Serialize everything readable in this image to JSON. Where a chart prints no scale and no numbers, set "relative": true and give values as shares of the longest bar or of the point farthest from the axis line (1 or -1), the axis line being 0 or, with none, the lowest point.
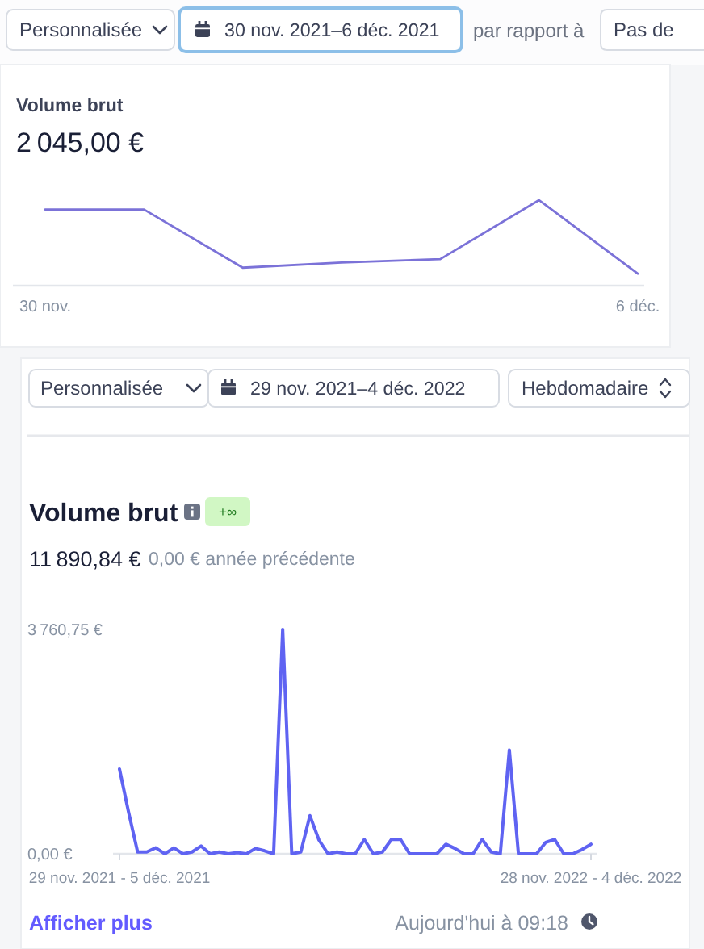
{
  "chart_data": [
    {
      "type": "line",
      "title": "Volume brut",
      "subtitle": "2 045,00 €",
      "annotations": [
        "Personnalisée",
        "30 nov. 2021–6 déc. 2021",
        "par rapport à",
        "Pas de"
      ],
      "categories": [
        "30 nov.",
        null,
        null,
        null,
        null,
        null,
        "6 déc."
      ],
      "relative": true,
      "series": [
        {
          "color": "#7b72d8",
          "values": [
            0.89,
            0.89,
            0.21,
            0.27,
            0.31,
            1,
            0.14
          ]
        }
      ]
    },
    {
      "type": "line",
      "title": "Volume brut",
      "subtitle": "11 890,84 €",
      "annotations": [
        "Personnalisée",
        "29 nov. 2021–4 déc. 2022",
        "Hebdomadaire",
        "+∞",
        "0,00 € année précédente",
        "Afficher plus",
        "Aujourd'hui à 09:18"
      ],
      "categories": [
        "29 nov. 2021 - 5 déc. 2021",
        null,
        null,
        null,
        null,
        null,
        null,
        null,
        null,
        null,
        null,
        null,
        null,
        null,
        null,
        null,
        null,
        null,
        null,
        null,
        null,
        null,
        null,
        null,
        null,
        null,
        null,
        null,
        null,
        null,
        null,
        null,
        null,
        null,
        null,
        null,
        null,
        null,
        null,
        null,
        null,
        null,
        null,
        null,
        null,
        null,
        null,
        null,
        null,
        null,
        null,
        null,
        "28 nov. 2022 - 4 déc. 2022"
      ],
      "ylim": [
        0,
        3760.75
      ],
      "yticks": [
        {
          "value": 0,
          "label": "0,00 €"
        },
        {
          "value": 3760.75,
          "label": "3 760,75 €"
        }
      ],
      "series": [
        {
          "color": "#5f63f2",
          "values": [
            1420,
            700,
            30,
            30,
            100,
            0,
            100,
            0,
            30,
            130,
            0,
            30,
            0,
            20,
            0,
            90,
            50,
            0,
            3760.75,
            0,
            30,
            640,
            230,
            0,
            30,
            0,
            0,
            240,
            0,
            30,
            240,
            240,
            0,
            0,
            0,
            0,
            160,
            90,
            0,
            0,
            240,
            30,
            0,
            1740,
            0,
            0,
            0,
            190,
            240,
            0,
            0,
            70,
            160
          ]
        }
      ]
    }
  ]
}
